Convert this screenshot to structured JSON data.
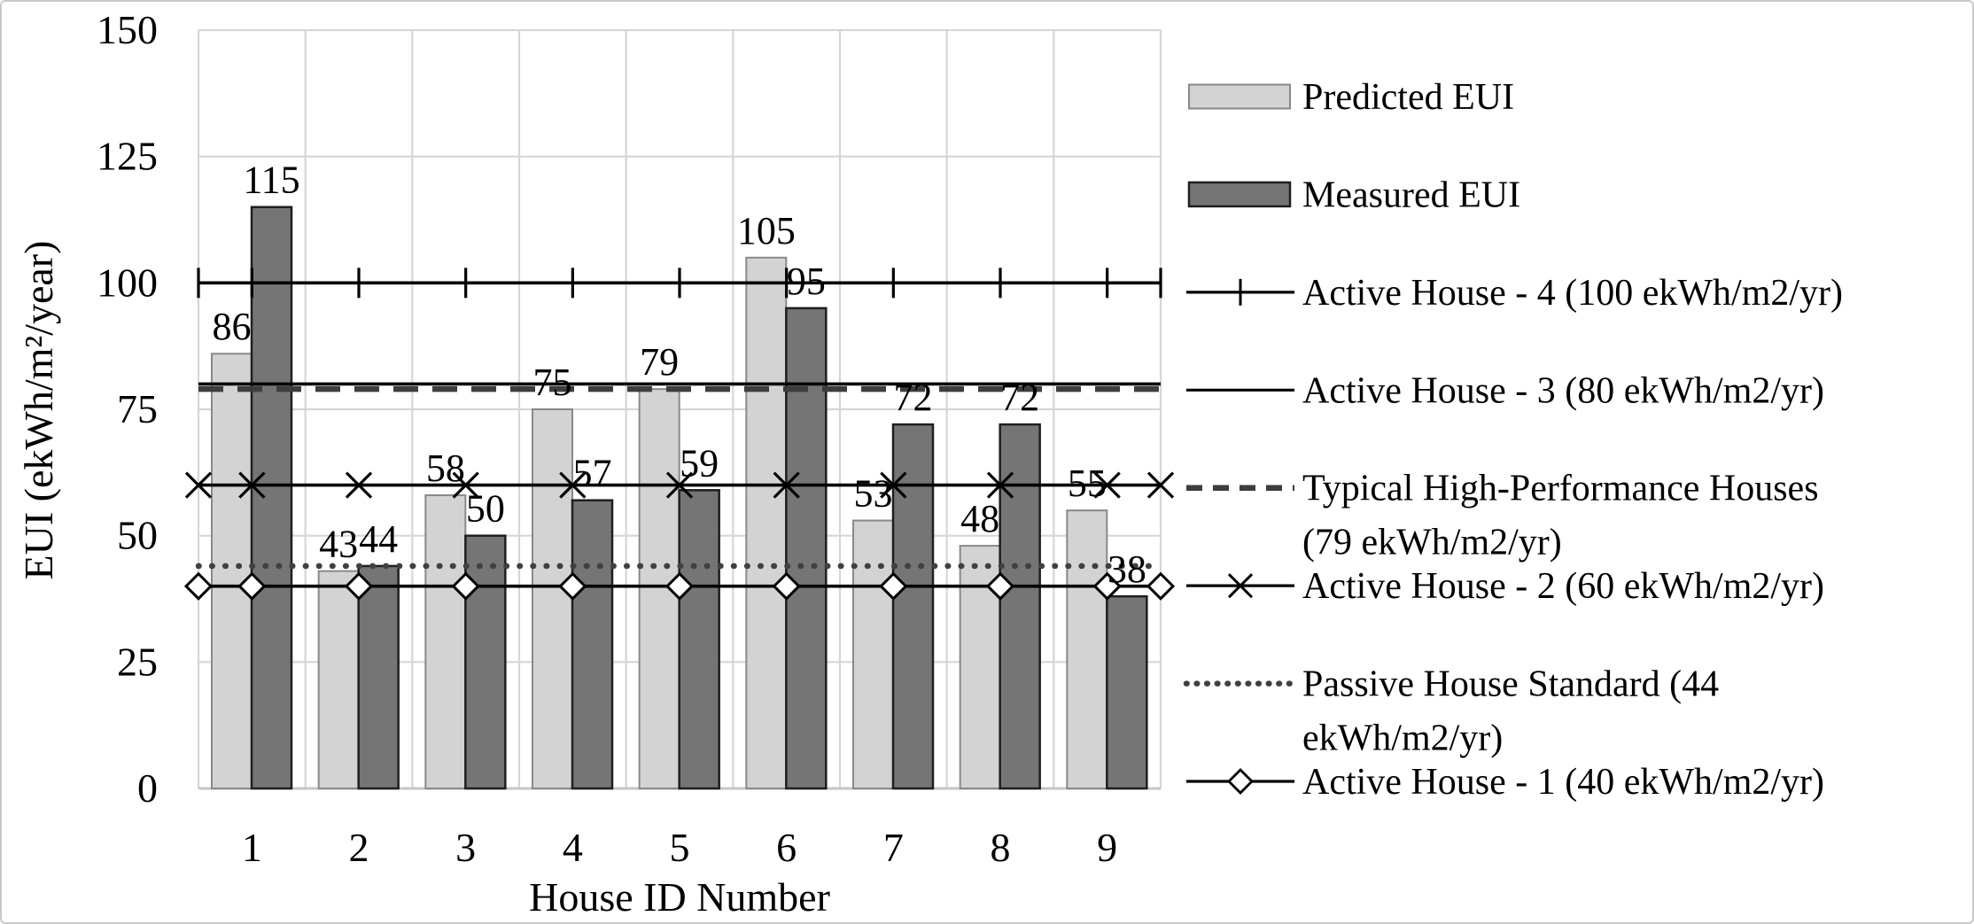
{
  "chart_data": {
    "type": "bar",
    "title": "",
    "xlabel": "House ID Number",
    "ylabel": "EUI (ekWh/m²/year)",
    "ylim": [
      0,
      150
    ],
    "ytick_step": 25,
    "yticks": [
      0,
      25,
      50,
      75,
      100,
      125,
      150
    ],
    "categories": [
      1,
      2,
      3,
      4,
      5,
      6,
      7,
      8,
      9
    ],
    "grid": true,
    "legend_position": "right",
    "series": [
      {
        "id": "predicted-eui",
        "name": "Predicted EUI",
        "values": [
          86,
          43,
          58,
          75,
          79,
          105,
          53,
          48,
          55
        ]
      },
      {
        "id": "measured-eui",
        "name": "Measured EUI",
        "values": [
          115,
          44,
          50,
          57,
          59,
          95,
          72,
          72,
          38
        ]
      }
    ],
    "reference_lines": [
      {
        "id": "active-house-4",
        "name": "Active House - 4 (100 ekWh/m2/yr)",
        "value": 100,
        "style": "solid",
        "marker": "plus"
      },
      {
        "id": "active-house-3",
        "name": "Active House - 3 (80 ekWh/m2/yr)",
        "value": 80,
        "style": "solid",
        "marker": "none"
      },
      {
        "id": "typical-high-performance-houses",
        "name": "Typical High-Performance Houses (79 ekWh/m2/yr)",
        "value": 79,
        "style": "dashed",
        "marker": "none"
      },
      {
        "id": "active-house-2",
        "name": "Active House - 2 (60 ekWh/m2/yr)",
        "value": 60,
        "style": "solid",
        "marker": "x"
      },
      {
        "id": "passive-house-standard",
        "name": "Passive House Standard (44 ekWh/m2/yr)",
        "value": 44,
        "style": "dotted",
        "marker": "none"
      },
      {
        "id": "active-house-1",
        "name": "Active House - 1 (40 ekWh/m2/yr)",
        "value": 40,
        "style": "solid",
        "marker": "diamond"
      }
    ]
  },
  "legend": {
    "items": [
      {
        "id": "predicted-eui",
        "type": "swatch",
        "swatch": "light",
        "lines": [
          "Predicted EUI"
        ]
      },
      {
        "id": "measured-eui",
        "type": "swatch",
        "swatch": "dark",
        "lines": [
          "Measured EUI"
        ]
      },
      {
        "id": "active-house-4",
        "type": "line",
        "style": "solid",
        "marker": "plus",
        "lines": [
          "Active House - 4 (100 ekWh/m2/yr)"
        ]
      },
      {
        "id": "active-house-3",
        "type": "line",
        "style": "solid",
        "marker": "none",
        "lines": [
          "Active House - 3 (80 ekWh/m2/yr)"
        ]
      },
      {
        "id": "typical-high-performance-houses",
        "type": "line",
        "style": "dashed",
        "marker": "none",
        "lines": [
          "Typical High-Performance Houses",
          "(79 ekWh/m2/yr)"
        ]
      },
      {
        "id": "active-house-2",
        "type": "line",
        "style": "solid",
        "marker": "x",
        "lines": [
          "Active House - 2 (60 ekWh/m2/yr)"
        ]
      },
      {
        "id": "passive-house-standard",
        "type": "line",
        "style": "dotted",
        "marker": "none",
        "lines": [
          "Passive House Standard (44",
          "ekWh/m2/yr)"
        ]
      },
      {
        "id": "active-house-1",
        "type": "line",
        "style": "solid",
        "marker": "diamond",
        "lines": [
          "Active House - 1 (40 ekWh/m2/yr)"
        ]
      }
    ]
  },
  "colors": {
    "bar_predicted_fill": "#d3d3d3",
    "bar_predicted_stroke": "#898989",
    "bar_measured_fill": "#757575",
    "bar_measured_stroke": "#1f1f1f",
    "grid": "#d6d6d6",
    "axis_line": "#c6c6c6",
    "ref_solid": "#000000",
    "ref_dashed": "#3d3d3d",
    "ref_dotted": "#404040",
    "text": "#000000",
    "frame_border": "#c9c9c9"
  }
}
